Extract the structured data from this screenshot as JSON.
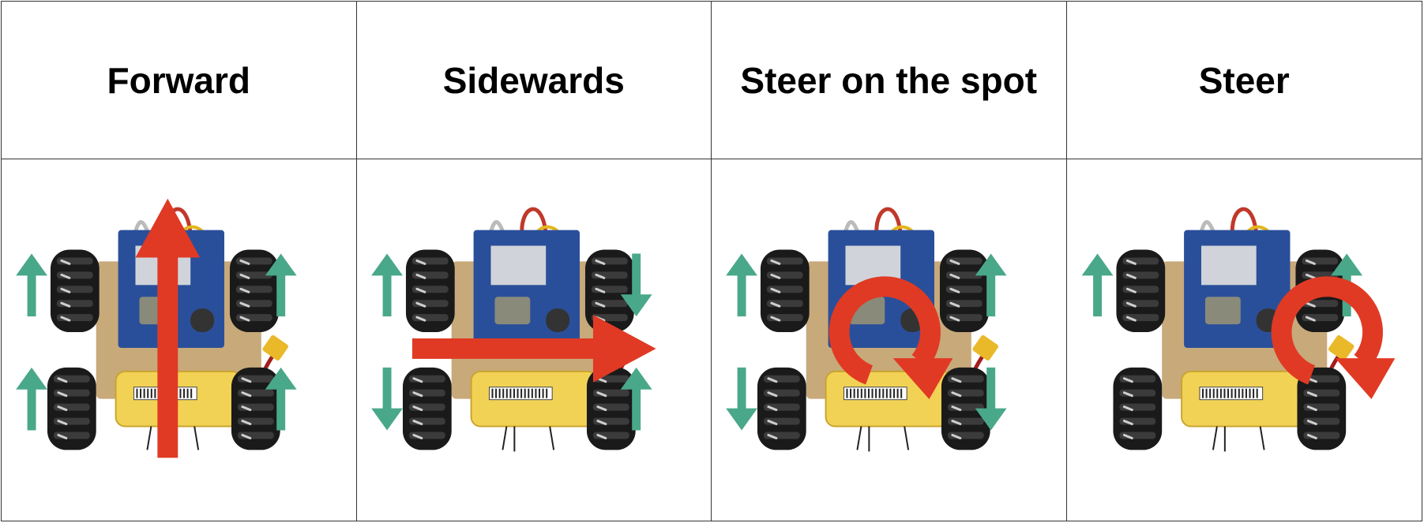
{
  "columns": [
    {
      "title": "Forward",
      "icon": "robot-forward-motion",
      "wheels": [
        "up",
        "up",
        "up",
        "up"
      ]
    },
    {
      "title": "Sidewards",
      "icon": "robot-sideways-motion",
      "wheels": [
        "up",
        "down",
        "down",
        "up"
      ]
    },
    {
      "title": "Steer on the spot",
      "icon": "robot-rotate-in-place",
      "wheels": [
        "up",
        "down",
        "up",
        "down"
      ]
    },
    {
      "title": "Steer",
      "icon": "robot-steer-motion",
      "wheels": [
        "up",
        "none",
        "up",
        "none"
      ]
    }
  ],
  "colors": {
    "wheel_arrow": "#4aa88a",
    "motion_arrow": "#e03a24",
    "battery": "#f2d255",
    "board": "#2a4f9a",
    "plate": "#c8a97a",
    "wheel": "#1a1a1a"
  }
}
